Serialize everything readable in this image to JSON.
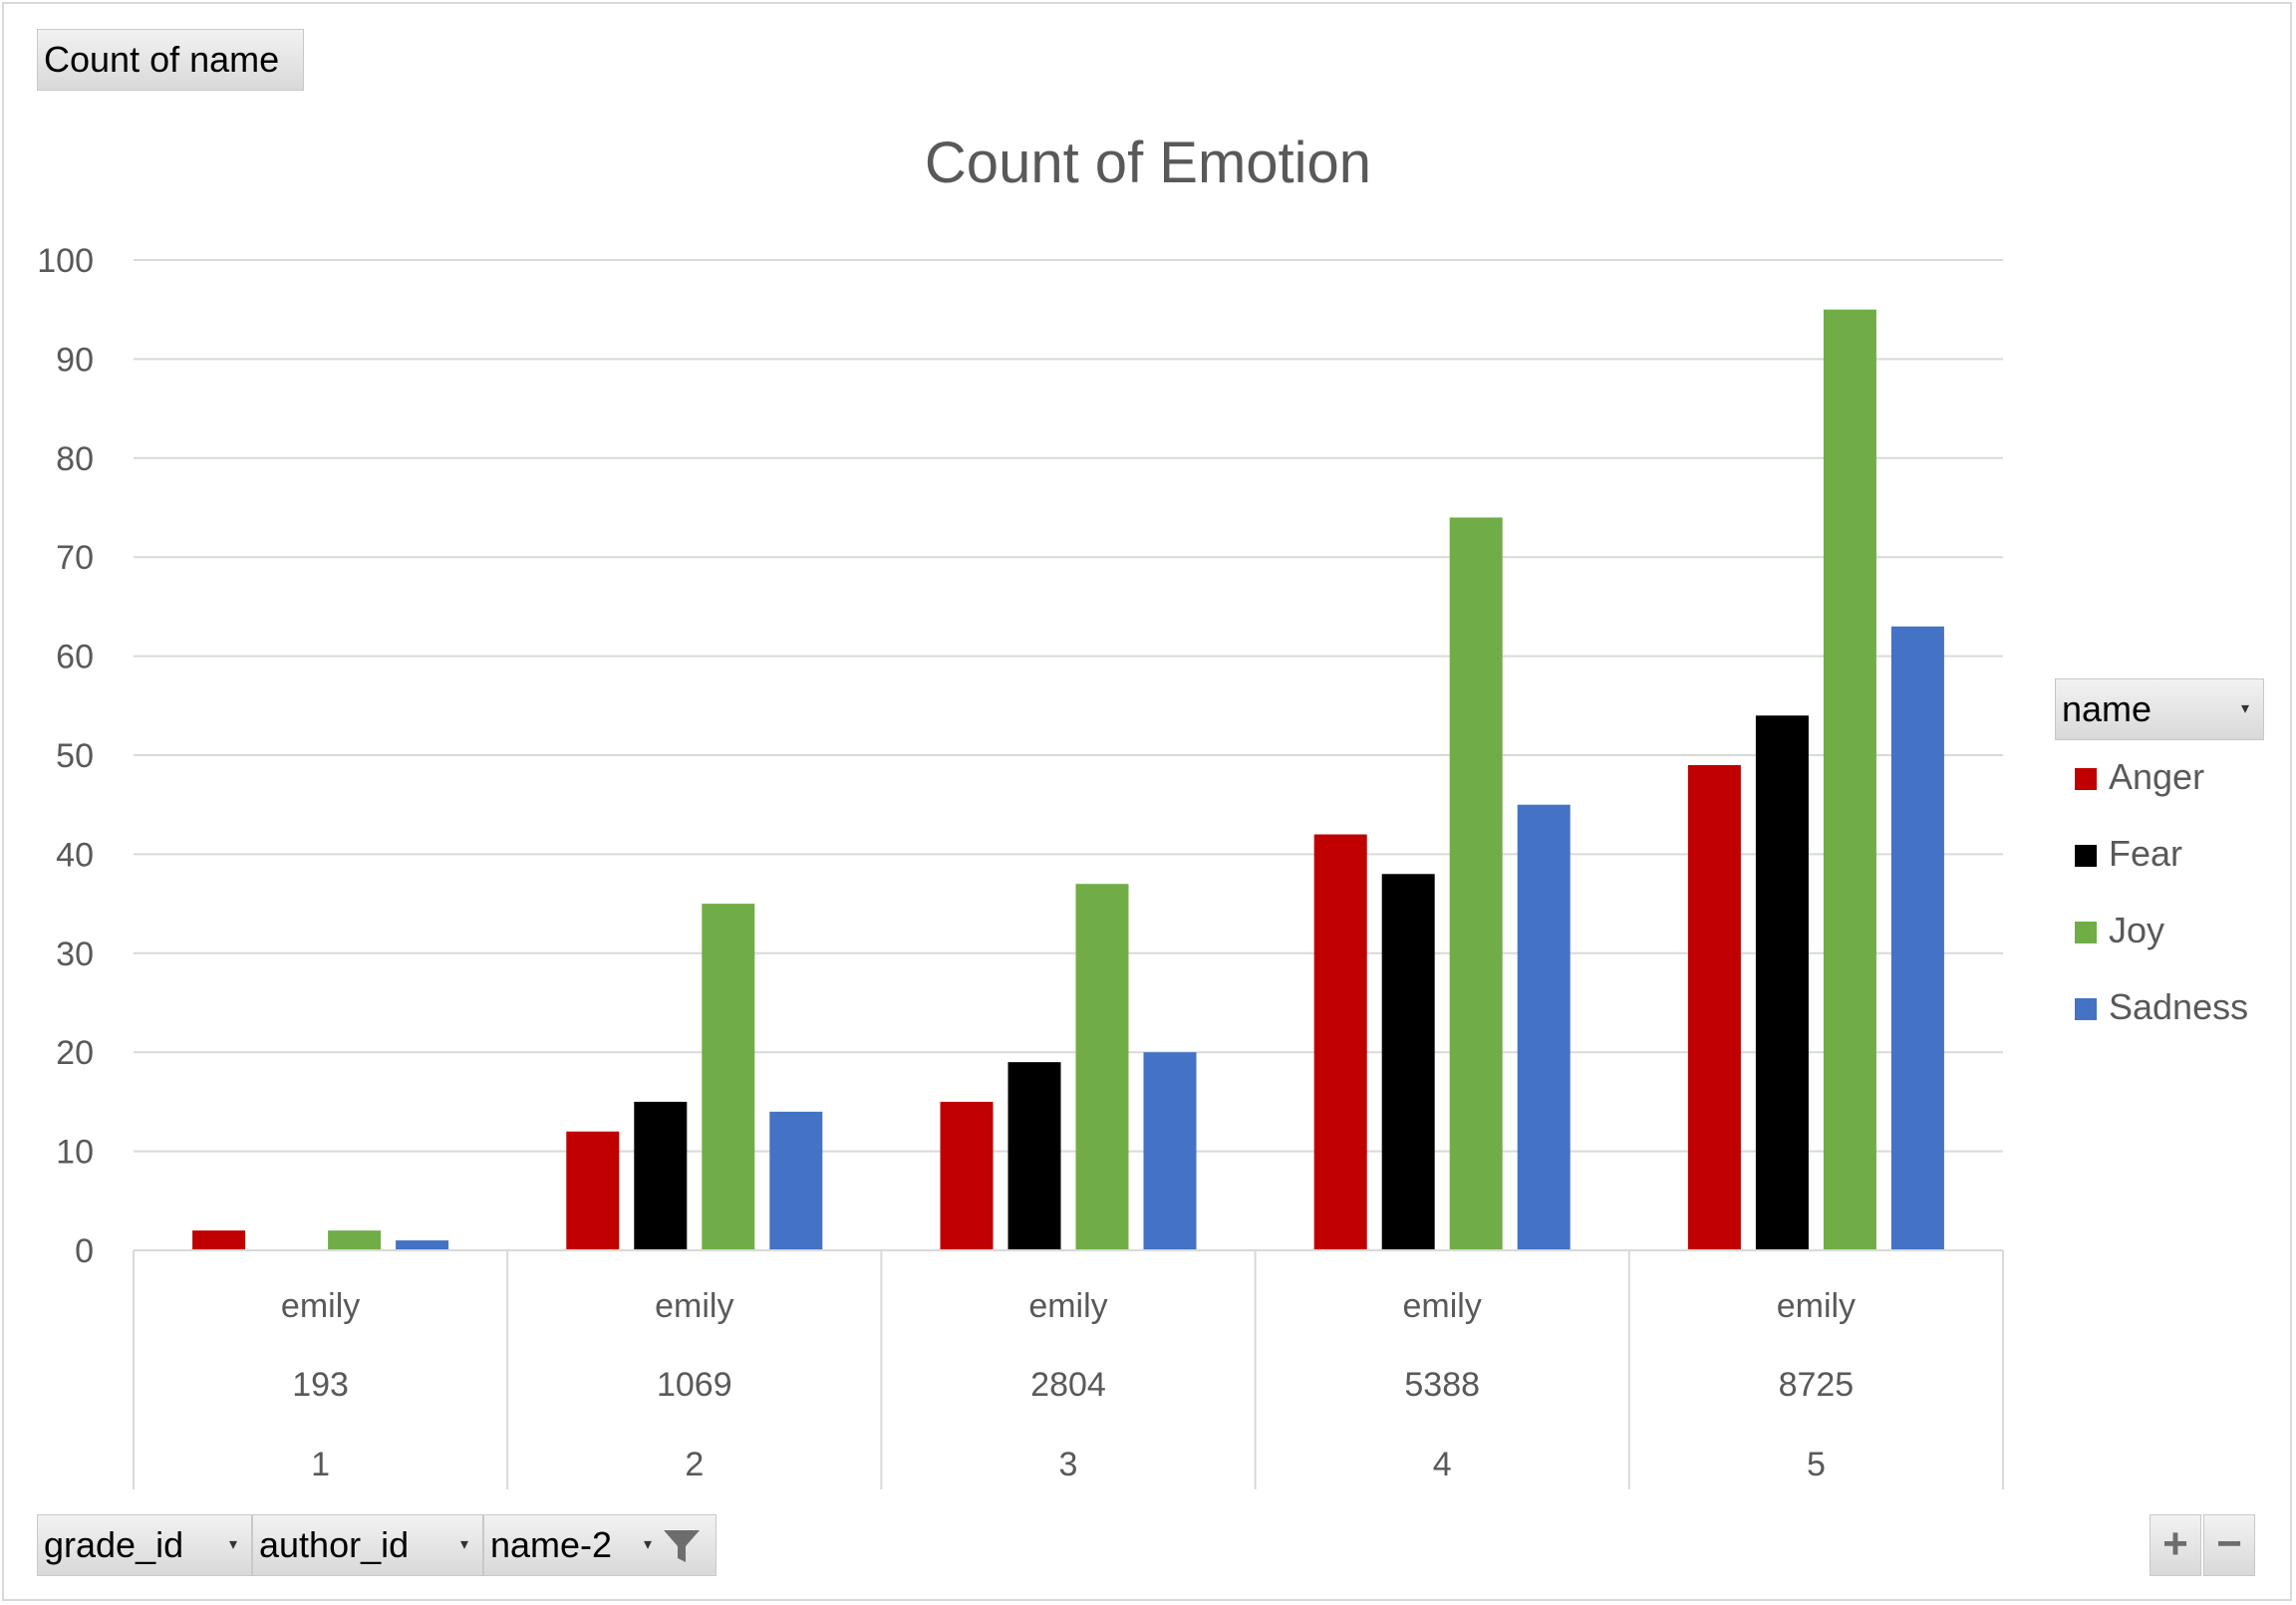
{
  "report_filter": {
    "label": "Count of name"
  },
  "legend": {
    "field_label": "name",
    "items": [
      {
        "label": "Anger",
        "color": "#c00000"
      },
      {
        "label": "Fear",
        "color": "#000000"
      },
      {
        "label": "Joy",
        "color": "#70ad47"
      },
      {
        "label": "Sadness",
        "color": "#4472c4"
      }
    ]
  },
  "axis_fields": [
    {
      "label": "grade_id",
      "icon": "dropdown-arrow-icon"
    },
    {
      "label": "author_id",
      "icon": "dropdown-arrow-icon"
    },
    {
      "label": "name-2",
      "icon": "filter-icon"
    }
  ],
  "zoom": {
    "plus": "+",
    "minus": "−"
  },
  "chart_data": {
    "type": "bar",
    "title": "Count of Emotion",
    "xlabel": "",
    "ylabel": "",
    "ylim": [
      0,
      100
    ],
    "yticks": [
      0,
      10,
      20,
      30,
      40,
      50,
      60,
      70,
      80,
      90,
      100
    ],
    "grid": true,
    "legend_position": "right",
    "categories": [
      {
        "name": "emily",
        "author_id": "193",
        "grade_id": "1"
      },
      {
        "name": "emily",
        "author_id": "1069",
        "grade_id": "2"
      },
      {
        "name": "emily",
        "author_id": "2804",
        "grade_id": "3"
      },
      {
        "name": "emily",
        "author_id": "5388",
        "grade_id": "4"
      },
      {
        "name": "emily",
        "author_id": "8725",
        "grade_id": "5"
      }
    ],
    "series": [
      {
        "name": "Anger",
        "color": "#c00000",
        "values": [
          2,
          12,
          15,
          42,
          49
        ]
      },
      {
        "name": "Fear",
        "color": "#000000",
        "values": [
          0,
          15,
          19,
          38,
          54
        ]
      },
      {
        "name": "Joy",
        "color": "#70ad47",
        "values": [
          2,
          35,
          37,
          74,
          95
        ]
      },
      {
        "name": "Sadness",
        "color": "#4472c4",
        "values": [
          1,
          14,
          20,
          45,
          63
        ]
      }
    ]
  }
}
